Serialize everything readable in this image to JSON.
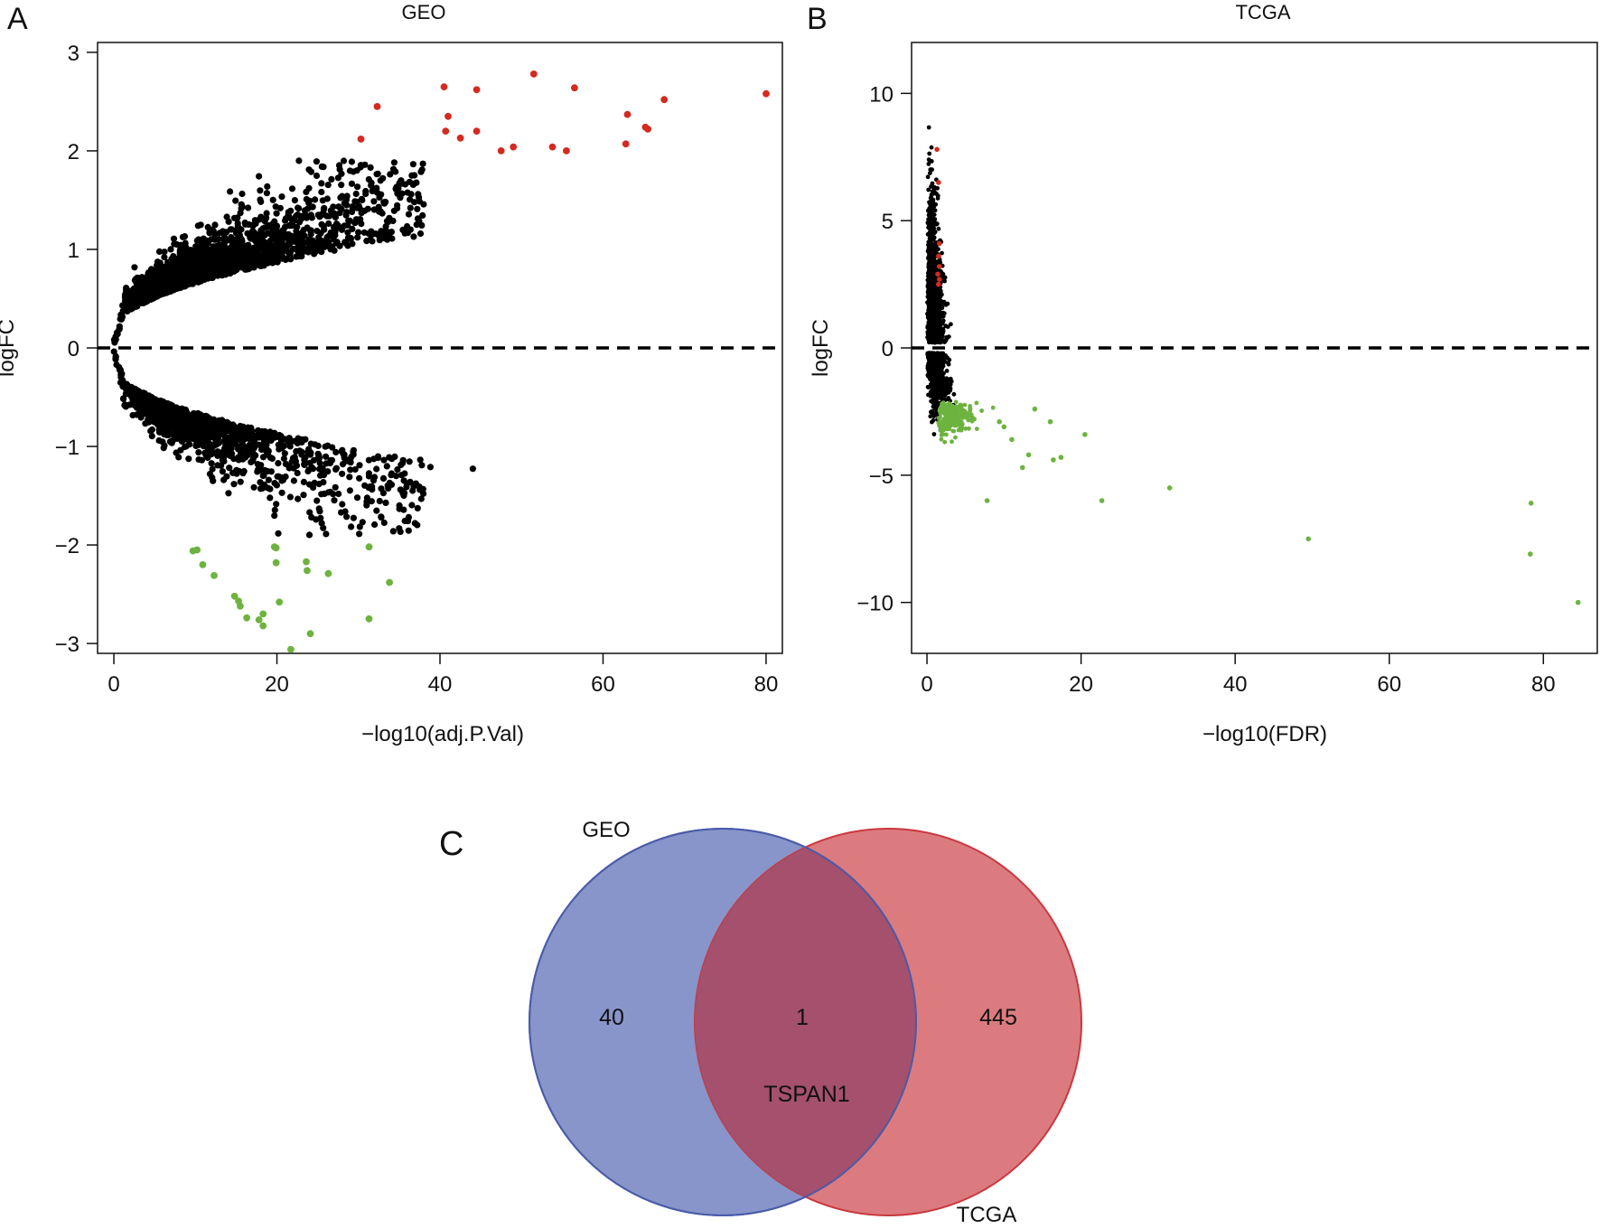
{
  "panels": [
    {
      "panel_label": "A",
      "chart_data": {
        "type": "scatter",
        "title": "GEO",
        "xlabel": "−log10(adj.P.Val)",
        "ylabel": "logFC",
        "xlim": [
          -2,
          82
        ],
        "ylim": [
          -3.1,
          3.1
        ],
        "xticks": [
          0,
          20,
          40,
          60,
          80
        ],
        "yticks": [
          -3,
          -2,
          -1,
          0,
          1,
          2,
          3
        ],
        "xtick_labels": [
          "0",
          "20",
          "40",
          "60",
          "80"
        ],
        "ytick_labels": [
          "−3",
          "−2",
          "−1",
          "0",
          "1",
          "2",
          "3"
        ],
        "reference_line": {
          "y": 0,
          "style": "dashed"
        },
        "grid": false,
        "legend": "none",
        "colors": {
          "up": "#d42a20",
          "down": "#6db33f",
          "ns": "#000000"
        },
        "series": [
          {
            "color": "up",
            "points": [
              [
                80,
                2.58
              ],
              [
                67.5,
                2.52
              ],
              [
                65.5,
                2.22
              ],
              [
                65.2,
                2.24
              ],
              [
                63,
                2.37
              ],
              [
                62.8,
                2.07
              ],
              [
                56.5,
                2.64
              ],
              [
                55.5,
                2.0
              ],
              [
                53.8,
                2.04
              ],
              [
                51.5,
                2.78
              ],
              [
                49,
                2.04
              ],
              [
                47.5,
                2.0
              ],
              [
                44.5,
                2.62
              ],
              [
                44.5,
                2.2
              ],
              [
                42.5,
                2.13
              ],
              [
                40.5,
                2.65
              ],
              [
                40.7,
                2.2
              ],
              [
                41,
                2.35
              ],
              [
                32.3,
                2.45
              ],
              [
                30.3,
                2.12
              ]
            ]
          },
          {
            "color": "down",
            "points": [
              [
                9.7,
                -2.06
              ],
              [
                10.2,
                -2.05
              ],
              [
                10.9,
                -2.2
              ],
              [
                12.3,
                -2.31
              ],
              [
                14.8,
                -2.52
              ],
              [
                15.3,
                -2.57
              ],
              [
                15.5,
                -2.62
              ],
              [
                16.3,
                -2.74
              ],
              [
                17.8,
                -2.76
              ],
              [
                18.3,
                -2.7
              ],
              [
                18.3,
                -2.82
              ],
              [
                20.3,
                -2.58
              ],
              [
                19.7,
                -2.02
              ],
              [
                19.9,
                -2.03
              ],
              [
                19.9,
                -2.18
              ],
              [
                23.6,
                -2.17
              ],
              [
                23.7,
                -2.26
              ],
              [
                24.1,
                -2.9
              ],
              [
                26.3,
                -2.29
              ],
              [
                21.7,
                -3.06
              ],
              [
                31.3,
                -2.02
              ],
              [
                31.3,
                -2.75
              ],
              [
                33.8,
                -2.38
              ]
            ]
          }
        ],
        "background_cloud": {
          "color": "ns",
          "point_count": 2800
        }
      }
    },
    {
      "panel_label": "B",
      "chart_data": {
        "type": "scatter",
        "title": "TCGA",
        "xlabel": "−log10(FDR)",
        "ylabel": "logFC",
        "xlim": [
          -2,
          87
        ],
        "ylim": [
          -12,
          12
        ],
        "xticks": [
          0,
          20,
          40,
          60,
          80
        ],
        "yticks": [
          -10,
          -5,
          0,
          5,
          10
        ],
        "xtick_labels": [
          "0",
          "20",
          "40",
          "60",
          "80"
        ],
        "ytick_labels": [
          "−10",
          "−5",
          "0",
          "5",
          "10"
        ],
        "reference_line": {
          "y": 0,
          "style": "dashed"
        },
        "grid": false,
        "legend": "none",
        "colors": {
          "up": "#d42a20",
          "down": "#6db33f",
          "ns": "#000000"
        },
        "series": [
          {
            "color": "up",
            "points": [
              [
                1.3,
                7.8
              ],
              [
                1.5,
                6.5
              ],
              [
                1.6,
                4.1
              ],
              [
                1.5,
                3.6
              ],
              [
                1.6,
                3.2
              ],
              [
                1.4,
                2.9
              ],
              [
                1.6,
                2.7
              ],
              [
                1.5,
                2.5
              ]
            ]
          },
          {
            "color": "down",
            "points": [
              [
                84.5,
                -10
              ],
              [
                78.3,
                -8.1
              ],
              [
                78.4,
                -6.1
              ],
              [
                49.5,
                -7.5
              ],
              [
                31.5,
                -5.5
              ],
              [
                22.7,
                -6.0
              ],
              [
                7.8,
                -6.0
              ],
              [
                20.5,
                -3.4
              ],
              [
                17.4,
                -4.3
              ],
              [
                16.4,
                -4.4
              ],
              [
                16,
                -2.9
              ],
              [
                14,
                -2.4
              ],
              [
                13.2,
                -4.2
              ],
              [
                12.4,
                -4.7
              ],
              [
                11,
                -3.6
              ],
              [
                10,
                -3.1
              ],
              [
                9.4,
                -2.9
              ]
            ]
          }
        ],
        "down_cloud": {
          "color": "down",
          "point_count": 250
        },
        "background_cloud": {
          "color": "ns",
          "point_count": 1800
        }
      }
    },
    {
      "panel_label": "C",
      "chart_data": {
        "type": "venn",
        "sets": [
          {
            "name": "GEO",
            "only_count": "40",
            "color": "#6a7bbd"
          },
          {
            "name": "TCGA",
            "only_count": "445",
            "color": "#d35a5f"
          }
        ],
        "intersection": {
          "count": "1",
          "label": "TSPAN1",
          "color": "#a34f6c"
        }
      }
    }
  ]
}
